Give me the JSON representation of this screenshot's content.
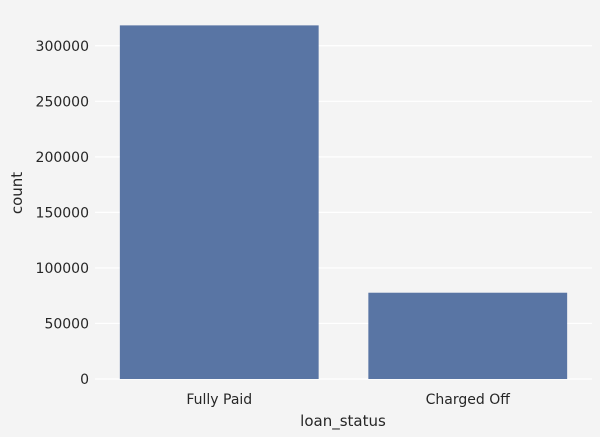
{
  "chart_data": {
    "type": "bar",
    "categories": [
      "Fully Paid",
      "Charged Off"
    ],
    "values": [
      318357,
      77673
    ],
    "xlabel": "loan_status",
    "ylabel": "count",
    "ylim": [
      0,
      334000
    ],
    "yticks": [
      0,
      50000,
      100000,
      150000,
      200000,
      250000,
      300000
    ],
    "grid": true,
    "bar_color": "#5975a4",
    "background_color": "#f4f4f4",
    "grid_color": "#ffffff"
  }
}
